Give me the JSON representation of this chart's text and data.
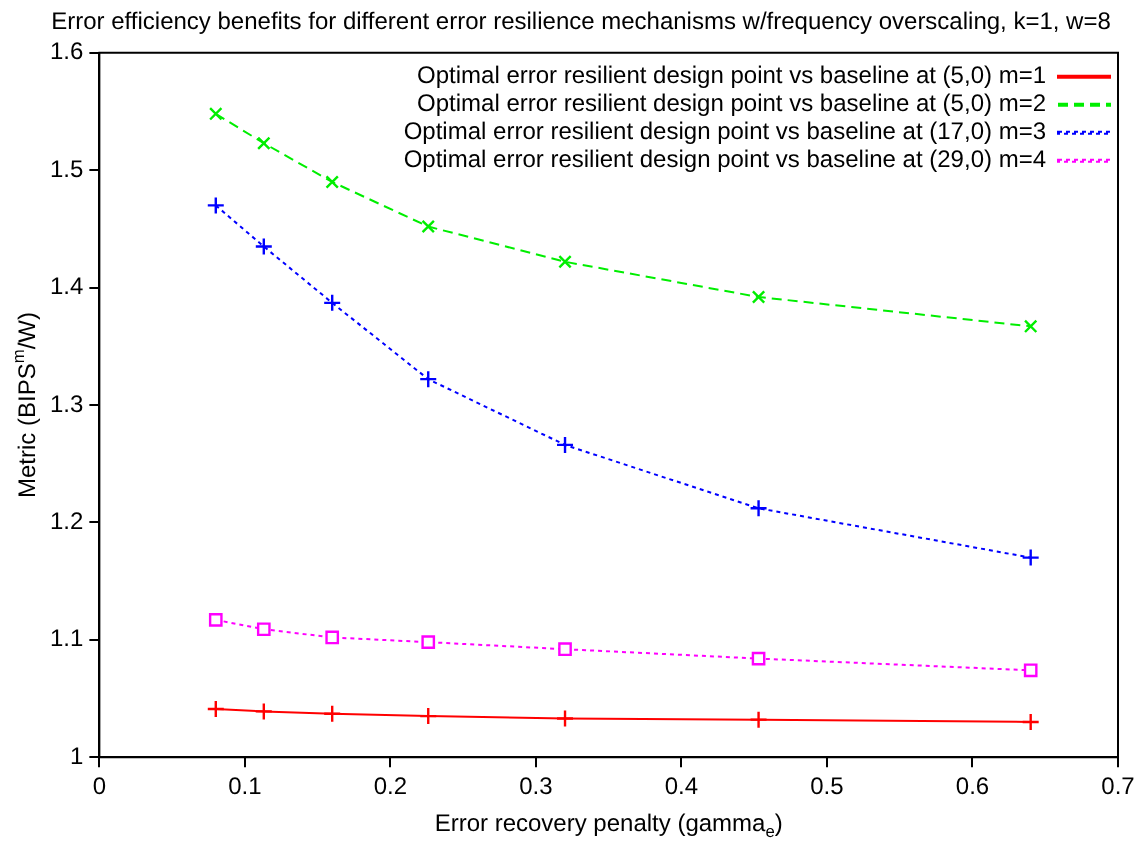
{
  "chart_data": {
    "type": "line",
    "title": "Error efficiency benefits for different error resilience mechanisms w/frequency overscaling, k=1, w=8",
    "xlabel": "Error recovery penalty (gamma$_{e}$)",
    "ylabel": "Metric (BIPS$^{m}$/W)",
    "x": [
      0.08,
      0.113,
      0.16,
      0.226,
      0.32,
      0.453,
      0.64
    ],
    "xlim": [
      0,
      0.7
    ],
    "xticks": [
      0,
      0.1,
      0.2,
      0.3,
      0.4,
      0.5,
      0.6,
      0.7
    ],
    "ylim": [
      1,
      1.6
    ],
    "yticks": [
      1,
      1.1,
      1.2,
      1.3,
      1.4,
      1.5,
      1.6
    ],
    "grid": false,
    "legend": "top right",
    "series": [
      {
        "name": "Optimal error resilient design point vs baseline at (5,0) m=1",
        "color": "#ff0000",
        "marker": "cross",
        "line_style": "solid",
        "values": [
          1.041,
          1.039,
          1.037,
          1.035,
          1.033,
          1.032,
          1.03
        ]
      },
      {
        "name": "Optimal error resilient design point vs baseline at (5,0) m=2",
        "color": "#00ee00",
        "marker": "x",
        "line_style": "dashed",
        "values": [
          1.548,
          1.523,
          1.49,
          1.452,
          1.422,
          1.392,
          1.367
        ]
      },
      {
        "name": "Optimal error resilient design point vs baseline at (17,0) m=3",
        "color": "#0000ff",
        "marker": "cross",
        "line_style": "dotted",
        "values": [
          1.47,
          1.435,
          1.387,
          1.322,
          1.266,
          1.212,
          1.17
        ]
      },
      {
        "name": "Optimal error resilient design point vs baseline at (29,0) m=4",
        "color": "#ff00ff",
        "marker": "square",
        "line_style": "dotted",
        "values": [
          1.117,
          1.109,
          1.102,
          1.098,
          1.092,
          1.084,
          1.074
        ]
      }
    ]
  }
}
